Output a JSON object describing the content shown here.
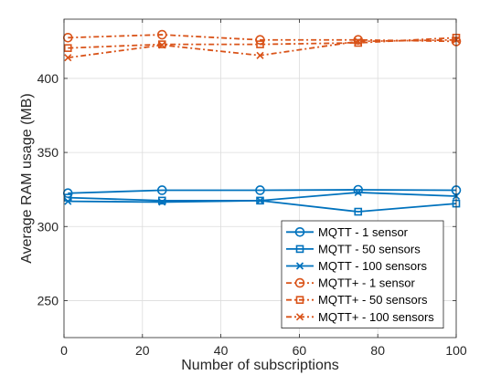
{
  "chart_data": {
    "type": "line",
    "title": "",
    "xlabel": "Number of subscriptions",
    "ylabel": "Average RAM usage (MB)",
    "xlim": [
      0,
      100
    ],
    "ylim": [
      225,
      440
    ],
    "xticks": [
      0,
      20,
      40,
      60,
      80,
      100
    ],
    "yticks": [
      250,
      300,
      350,
      400
    ],
    "grid": true,
    "legend_position": "bottom-right",
    "x": [
      1,
      25,
      50,
      75,
      100
    ],
    "series": [
      {
        "name": "MQTT - 1 sensor",
        "values": [
          322.5,
          324.5,
          324.5,
          324.8,
          324.5
        ],
        "color": "#0072BD",
        "line": "solid",
        "marker": "circle"
      },
      {
        "name": "MQTT - 50 sensors",
        "values": [
          319.5,
          317.5,
          317.5,
          310.0,
          315.5
        ],
        "color": "#0072BD",
        "line": "solid",
        "marker": "square"
      },
      {
        "name": "MQTT - 100 sensors",
        "values": [
          317.0,
          316.5,
          317.5,
          323.0,
          320.5
        ],
        "color": "#0072BD",
        "line": "solid",
        "marker": "x"
      },
      {
        "name": "MQTT+ - 1 sensor",
        "values": [
          427.5,
          429.5,
          426.0,
          426.0,
          425.0
        ],
        "color": "#D95319",
        "line": "dashed",
        "marker": "circle"
      },
      {
        "name": "MQTT+ - 50 sensors",
        "values": [
          420.5,
          423.0,
          423.0,
          424.0,
          427.5
        ],
        "color": "#D95319",
        "line": "dashed",
        "marker": "square"
      },
      {
        "name": "MQTT+ - 100 sensors",
        "values": [
          414.0,
          422.5,
          415.5,
          425.0,
          426.0
        ],
        "color": "#D95319",
        "line": "dashed",
        "marker": "x"
      }
    ]
  }
}
